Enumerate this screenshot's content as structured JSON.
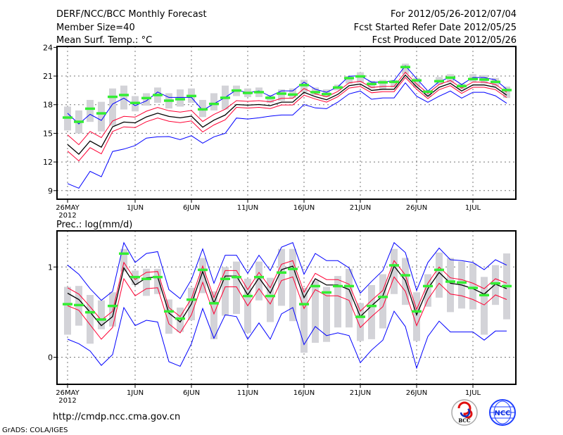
{
  "header": {
    "title": "DERF/NCC/BCC Monthly Forecast",
    "member_size": "Member Size=40",
    "variable": "Mean Surf. Temp.: °C",
    "period": "For 2012/05/26-2012/07/04",
    "start_date": "Fcst Started Refer Date 2012/05/25",
    "produced_date": "Fcst Produced Date 2012/05/26"
  },
  "footer": {
    "url": "http://cmdp.ncc.cma.gov.cn",
    "credit": "GrADS: COLA/IGES",
    "logo_bcc": "BCC",
    "logo_ncc": "NCC"
  },
  "colors": {
    "max_min": "#0000ff",
    "spread": "#ff0033",
    "mean": "#000000",
    "obs": "#33ee33",
    "clim": "#d3d3d8"
  },
  "chart_data": [
    {
      "type": "line",
      "title": "Mean Surf. Temp.: °C",
      "ylim": [
        8.1,
        24.1
      ],
      "yticks": [
        9,
        12,
        15,
        18,
        21,
        24
      ],
      "ytick_labels": [
        "9",
        "12",
        "15",
        "18",
        "21",
        "24"
      ],
      "xticks": [
        0,
        6,
        11,
        16,
        21,
        26,
        31,
        36
      ],
      "xtick_labels": [
        "26MAY",
        "1JUN",
        "6JUN",
        "11JUN",
        "16JUN",
        "21JUN",
        "26JUN",
        "1JUL"
      ],
      "year_label": "2012",
      "grid": true,
      "n_days": 40,
      "series": [
        {
          "name": "max",
          "color": "#0000ff",
          "values": [
            17.1,
            15.98,
            16.99,
            16.35,
            18.07,
            18.69,
            17.9,
            18.4,
            19.33,
            18.76,
            18.76,
            18.76,
            17.41,
            18.1,
            18.76,
            19.55,
            19.25,
            19.45,
            18.89,
            19.45,
            19.45,
            20.36,
            19.62,
            19.3,
            19.87,
            20.98,
            21.03,
            20.36,
            20.36,
            20.53,
            22.08,
            20.73,
            19.43,
            20.41,
            20.9,
            20.11,
            20.85,
            20.85,
            20.6,
            19.62
          ]
        },
        {
          "name": "upper",
          "color": "#ff0033",
          "values": [
            14.84,
            13.81,
            15.2,
            14.55,
            16.29,
            16.78,
            16.7,
            17.32,
            17.71,
            17.37,
            17.22,
            17.4,
            16.24,
            16.98,
            17.52,
            18.42,
            18.35,
            18.42,
            18.3,
            18.67,
            18.67,
            19.7,
            19.14,
            18.82,
            19.38,
            20.29,
            20.46,
            19.8,
            19.92,
            19.92,
            21.4,
            20.17,
            19.19,
            20.12,
            20.54,
            19.73,
            20.37,
            20.37,
            20.12,
            19.3
          ]
        },
        {
          "name": "mean",
          "color": "#000000",
          "values": [
            13.84,
            12.81,
            14.2,
            13.55,
            15.69,
            16.18,
            16.1,
            16.72,
            17.11,
            16.77,
            16.62,
            16.8,
            15.64,
            16.38,
            16.92,
            18.02,
            17.95,
            18.02,
            17.9,
            18.27,
            18.27,
            19.3,
            18.84,
            18.52,
            19.08,
            19.99,
            20.16,
            19.5,
            19.62,
            19.62,
            21.1,
            19.87,
            18.89,
            19.82,
            20.24,
            19.43,
            20.07,
            20.07,
            19.82,
            19.0
          ]
        },
        {
          "name": "lower",
          "color": "#ff0033",
          "values": [
            13.14,
            12.11,
            13.5,
            12.85,
            15.19,
            15.68,
            15.6,
            16.22,
            16.61,
            16.27,
            16.12,
            16.3,
            15.14,
            15.88,
            16.42,
            17.72,
            17.65,
            17.72,
            17.6,
            17.97,
            17.97,
            19.0,
            18.59,
            18.27,
            18.83,
            19.74,
            19.91,
            19.25,
            19.37,
            19.37,
            20.85,
            19.62,
            18.64,
            19.57,
            19.99,
            19.18,
            19.82,
            19.82,
            19.57,
            18.75
          ]
        },
        {
          "name": "min",
          "color": "#0000ff",
          "values": [
            9.74,
            9.25,
            11.02,
            10.45,
            13.1,
            13.35,
            13.72,
            14.5,
            14.63,
            14.66,
            14.34,
            14.75,
            13.97,
            14.63,
            15.0,
            16.6,
            16.5,
            16.62,
            16.8,
            16.92,
            16.92,
            18.02,
            17.66,
            17.58,
            18.27,
            19.13,
            19.43,
            18.57,
            18.71,
            18.71,
            20.29,
            18.89,
            18.25,
            18.89,
            19.43,
            18.69,
            19.3,
            19.3,
            18.93,
            18.15
          ]
        }
      ],
      "obs": [
        16.67,
        16.23,
        17.6,
        17.11,
        18.84,
        19.03,
        18.2,
        18.71,
        19.03,
        18.44,
        18.59,
        18.93,
        17.53,
        18.1,
        18.74,
        19.5,
        19.25,
        19.33,
        18.74,
        19.18,
        19.08,
        20.07,
        19.33,
        19.13,
        19.82,
        20.8,
        20.98,
        20.19,
        20.36,
        20.41,
        21.96,
        20.56,
        19.38,
        20.48,
        20.85,
        19.97,
        20.7,
        20.65,
        20.41,
        19.55
      ],
      "clim_low": [
        15.3,
        15.0,
        16.2,
        15.2,
        15.8,
        17.5,
        17.3,
        17.9,
        18.2,
        17.6,
        17.8,
        18.2,
        16.7,
        17.4,
        17.5,
        18.9,
        18.8,
        18.8,
        18.2,
        18.4,
        18.7,
        19.3,
        19.0,
        18.8,
        19.5,
        20.2,
        20.3,
        19.7,
        19.6,
        19.8,
        21.2,
        19.8,
        18.8,
        20.1,
        20.3,
        19.6,
        20.4,
        20.2,
        19.9,
        18.7
      ],
      "clim_high": [
        17.8,
        17.4,
        18.5,
        18.3,
        19.7,
        20.0,
        18.9,
        19.2,
        19.8,
        19.2,
        19.6,
        19.7,
        18.5,
        19.2,
        20.0,
        20.0,
        19.7,
        19.8,
        19.0,
        19.6,
        19.7,
        20.6,
        19.8,
        19.6,
        20.1,
        21.0,
        21.4,
        20.5,
        20.6,
        20.6,
        22.3,
        20.8,
        19.5,
        20.9,
        21.2,
        20.2,
        21.2,
        21.1,
        20.8,
        19.9
      ]
    },
    {
      "type": "line",
      "title": "Prec.: log(mm/d)",
      "ylim": [
        -0.3,
        1.4
      ],
      "yticks": [
        0,
        1
      ],
      "ytick_labels": [
        "0",
        "1"
      ],
      "xticks": [
        0,
        6,
        11,
        16,
        21,
        26,
        31,
        36
      ],
      "xtick_labels": [
        "26MAY",
        "1JUN",
        "6JUN",
        "11JUN",
        "16JUN",
        "21JUN",
        "26JUN",
        "1JUL"
      ],
      "year_label": "2012",
      "grid": true,
      "n_days": 40,
      "series": [
        {
          "name": "max",
          "color": "#0000ff",
          "values": [
            1.02,
            0.92,
            0.76,
            0.63,
            0.73,
            1.27,
            1.05,
            1.15,
            1.17,
            0.75,
            0.65,
            0.86,
            1.2,
            0.82,
            1.13,
            1.13,
            0.93,
            1.13,
            0.96,
            1.22,
            1.27,
            0.92,
            1.15,
            1.07,
            1.07,
            0.99,
            0.71,
            0.84,
            0.96,
            1.27,
            1.16,
            0.74,
            1.05,
            1.21,
            1.08,
            1.07,
            1.05,
            0.97,
            1.08,
            1.02
          ]
        },
        {
          "name": "upper",
          "color": "#ff0033",
          "values": [
            0.77,
            0.7,
            0.56,
            0.41,
            0.51,
            1.05,
            0.86,
            0.94,
            0.95,
            0.55,
            0.45,
            0.65,
            1.01,
            0.66,
            0.96,
            0.96,
            0.75,
            0.94,
            0.77,
            1.03,
            1.07,
            0.72,
            0.93,
            0.86,
            0.86,
            0.81,
            0.51,
            0.63,
            0.74,
            1.07,
            0.91,
            0.53,
            0.82,
            1.0,
            0.88,
            0.86,
            0.82,
            0.76,
            0.87,
            0.82
          ]
        },
        {
          "name": "mean",
          "color": "#000000",
          "values": [
            0.71,
            0.64,
            0.5,
            0.35,
            0.45,
            0.99,
            0.8,
            0.88,
            0.89,
            0.49,
            0.39,
            0.59,
            0.95,
            0.6,
            0.9,
            0.9,
            0.69,
            0.88,
            0.71,
            0.97,
            1.01,
            0.66,
            0.87,
            0.8,
            0.8,
            0.75,
            0.45,
            0.57,
            0.68,
            1.01,
            0.85,
            0.47,
            0.76,
            0.94,
            0.82,
            0.8,
            0.76,
            0.7,
            0.81,
            0.76
          ]
        },
        {
          "name": "lower",
          "color": "#ff0033",
          "values": [
            0.57,
            0.52,
            0.36,
            0.2,
            0.33,
            0.87,
            0.68,
            0.76,
            0.77,
            0.37,
            0.27,
            0.47,
            0.83,
            0.48,
            0.78,
            0.78,
            0.57,
            0.76,
            0.59,
            0.85,
            0.89,
            0.54,
            0.75,
            0.68,
            0.68,
            0.63,
            0.33,
            0.45,
            0.56,
            0.89,
            0.73,
            0.35,
            0.64,
            0.82,
            0.7,
            0.68,
            0.64,
            0.58,
            0.69,
            0.64
          ]
        },
        {
          "name": "min",
          "color": "#0000ff",
          "values": [
            0.2,
            0.15,
            0.07,
            -0.09,
            0.03,
            0.55,
            0.35,
            0.41,
            0.39,
            -0.05,
            -0.1,
            0.15,
            0.54,
            0.21,
            0.47,
            0.45,
            0.2,
            0.38,
            0.2,
            0.48,
            0.55,
            0.14,
            0.34,
            0.24,
            0.27,
            0.24,
            -0.06,
            0.08,
            0.19,
            0.51,
            0.34,
            -0.12,
            0.23,
            0.4,
            0.28,
            0.28,
            0.28,
            0.19,
            0.29,
            0.29
          ]
        }
      ],
      "obs": [
        0.59,
        0.58,
        0.5,
        0.42,
        0.57,
        1.15,
        0.89,
        0.87,
        0.89,
        0.51,
        0.43,
        0.64,
        0.97,
        0.6,
        0.87,
        0.89,
        0.68,
        0.89,
        0.68,
        0.94,
        0.98,
        0.59,
        0.79,
        0.72,
        0.79,
        0.79,
        0.45,
        0.57,
        0.67,
        1.02,
        0.91,
        0.51,
        0.79,
        0.97,
        0.84,
        0.83,
        0.77,
        0.69,
        0.82,
        0.79
      ],
      "clim_low": [
        0.25,
        0.35,
        0.15,
        0.31,
        0.34,
        0.95,
        0.8,
        0.68,
        0.7,
        0.26,
        0.28,
        0.41,
        0.71,
        0.2,
        0.46,
        0.48,
        0.27,
        0.63,
        0.39,
        0.57,
        0.4,
        0.05,
        0.16,
        0.17,
        0.33,
        0.33,
        0.18,
        0.2,
        0.32,
        0.7,
        0.58,
        0.18,
        0.56,
        0.66,
        0.5,
        0.54,
        0.53,
        0.25,
        0.58,
        0.42
      ],
      "clim_high": [
        0.78,
        0.79,
        0.69,
        0.63,
        0.72,
        1.2,
        0.96,
        0.98,
        0.98,
        0.64,
        0.55,
        0.77,
        1.1,
        0.73,
        1.0,
        1.06,
        0.87,
        1.06,
        0.88,
        1.2,
        1.2,
        0.77,
        0.85,
        0.78,
        0.9,
        0.98,
        0.6,
        0.8,
        0.92,
        1.2,
        1.1,
        0.72,
        0.92,
        1.16,
        1.1,
        1.06,
        1.04,
        0.89,
        1.02,
        1.15
      ]
    }
  ]
}
